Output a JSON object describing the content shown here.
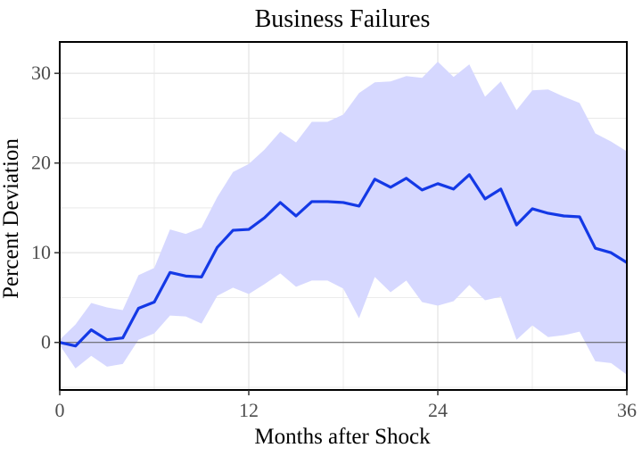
{
  "chart_data": {
    "type": "line",
    "title": "Business Failures",
    "xlabel": "Months after Shock",
    "ylabel": "Percent Deviation",
    "xlim": [
      0,
      36
    ],
    "ylim": [
      -5.3,
      33.5
    ],
    "xticks": [
      0,
      12,
      24,
      36
    ],
    "yticks": [
      0,
      10,
      20,
      30
    ],
    "grid": true,
    "legend": "none",
    "colors": {
      "line": "#1439e6",
      "band": "#d6d8ff",
      "zero_line": "#555555",
      "grid": "#e6e6e6"
    },
    "series": [
      {
        "x": [
          0,
          1,
          2,
          3,
          4,
          5,
          6,
          7,
          8,
          9,
          10,
          11,
          12,
          13,
          14,
          15,
          16,
          17,
          18,
          19,
          20,
          21,
          22,
          23,
          24,
          25,
          26,
          27,
          28,
          29,
          30,
          31,
          32,
          33,
          34,
          35,
          36
        ],
        "values": [
          0.0,
          -0.4,
          1.4,
          0.3,
          0.5,
          3.8,
          4.5,
          7.8,
          7.4,
          7.3,
          10.6,
          12.5,
          12.6,
          13.9,
          15.6,
          14.1,
          15.7,
          15.7,
          15.6,
          15.2,
          18.2,
          17.3,
          18.3,
          17.0,
          17.7,
          17.1,
          18.7,
          16.0,
          17.1,
          13.1,
          14.9,
          14.4,
          14.1,
          14.0,
          10.5,
          10.0,
          8.9
        ],
        "lower": [
          -0.3,
          -2.9,
          -1.5,
          -2.7,
          -2.4,
          0.3,
          1.0,
          3.0,
          2.9,
          2.1,
          5.2,
          6.1,
          5.4,
          6.5,
          7.7,
          6.2,
          6.9,
          6.9,
          6.0,
          2.7,
          7.3,
          5.6,
          6.9,
          4.5,
          4.1,
          4.6,
          6.4,
          4.7,
          5.1,
          0.3,
          1.9,
          0.6,
          0.8,
          1.2,
          -2.1,
          -2.3,
          -3.6
        ],
        "upper": [
          0.3,
          2.0,
          4.4,
          3.9,
          3.6,
          7.5,
          8.3,
          12.6,
          12.1,
          12.8,
          16.2,
          19.0,
          19.9,
          21.5,
          23.5,
          22.3,
          24.6,
          24.6,
          25.4,
          27.8,
          29.0,
          29.1,
          29.7,
          29.5,
          31.3,
          29.6,
          31.0,
          27.4,
          29.1,
          25.9,
          28.1,
          28.2,
          27.4,
          26.7,
          23.3,
          22.4,
          21.3
        ]
      }
    ]
  }
}
